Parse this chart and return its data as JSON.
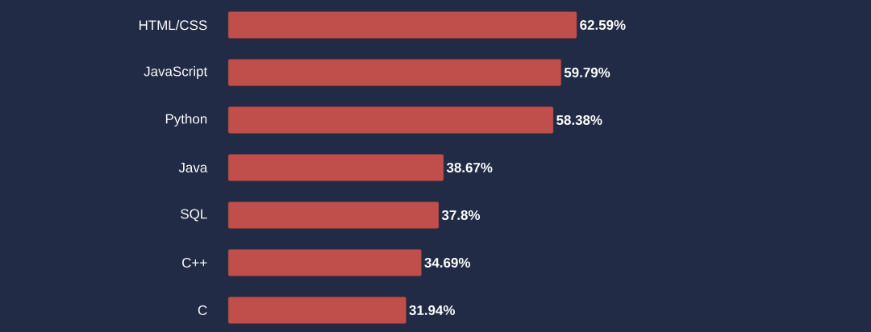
{
  "chart_data": {
    "type": "bar",
    "orientation": "horizontal",
    "categories": [
      "HTML/CSS",
      "JavaScript",
      "Python",
      "Java",
      "SQL",
      "C++",
      "C"
    ],
    "values": [
      62.59,
      59.79,
      58.38,
      38.67,
      37.8,
      34.69,
      31.94
    ],
    "value_labels": [
      "62.59%",
      "59.79%",
      "58.38%",
      "38.67%",
      "37.8%",
      "34.69%",
      "31.94%"
    ],
    "color": "#c04f4b"
  }
}
